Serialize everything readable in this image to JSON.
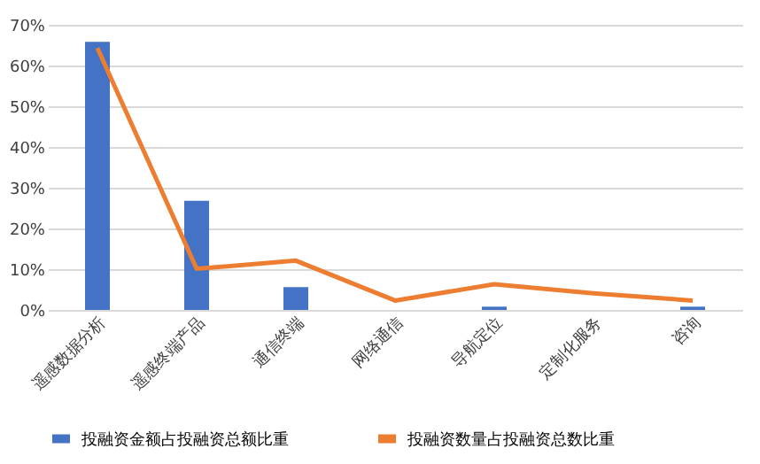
{
  "chart_data": {
    "type": "bar",
    "categories": [
      "遥感数据分析",
      "遥感终端产品",
      "通信终端",
      "网络通信",
      "导航定位",
      "定制化服务",
      "咨询"
    ],
    "series": [
      {
        "name": "投融资金额占投融资总额比重",
        "color": "#4472c4",
        "values": [
          65.8,
          26.8,
          5.6,
          0,
          0.8,
          0,
          0.8
        ]
      },
      {
        "name": "投融资数量占投融资总数比重",
        "type": "line",
        "color": "#ed7d31",
        "values": [
          64.3,
          10.1,
          12.1,
          2.3,
          6.3,
          4.1,
          2.3
        ]
      }
    ],
    "ylim": [
      0,
      70
    ],
    "yticks": [
      {
        "value": 0,
        "label": "0%"
      },
      {
        "value": 10,
        "label": "10%"
      },
      {
        "value": 20,
        "label": "20%"
      },
      {
        "value": 30,
        "label": "30%"
      },
      {
        "value": 40,
        "label": "40%"
      },
      {
        "value": 50,
        "label": "50%"
      },
      {
        "value": 60,
        "label": "60%"
      },
      {
        "value": 70,
        "label": "70%"
      }
    ],
    "grid": "y",
    "legend": "bottom",
    "marker": "none",
    "line_style": "solid"
  }
}
